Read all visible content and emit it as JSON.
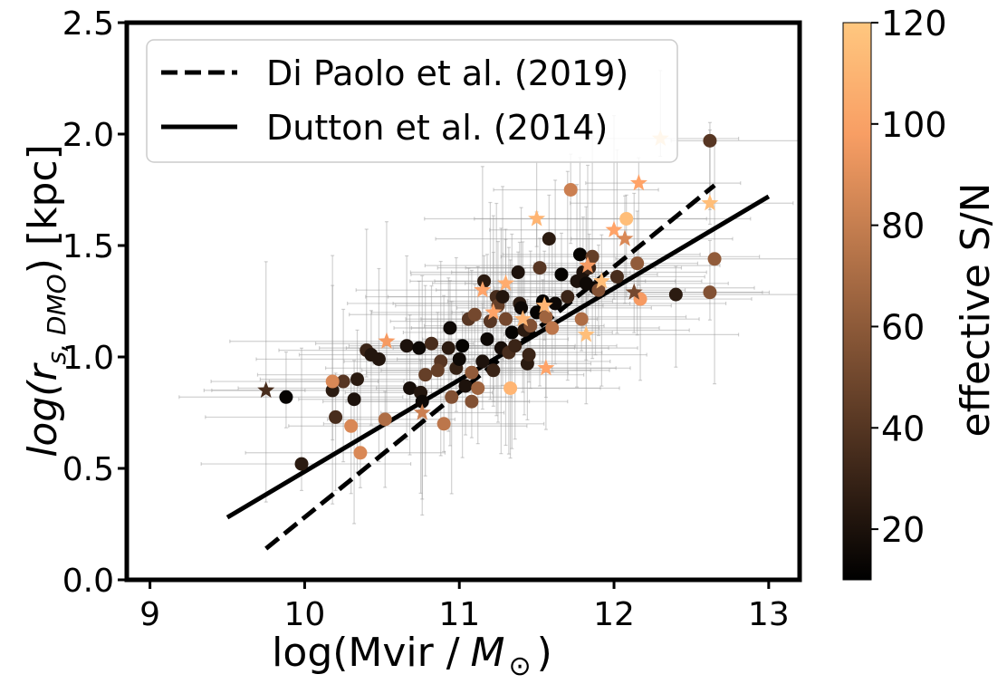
{
  "chart_data": {
    "type": "scatter",
    "xlabel_main": "log(Mvir /",
    "xlabel_math": "M",
    "xlabel_sub": "⊙",
    "xlabel_close": ")",
    "ylabel_prefix": "log(",
    "ylabel_math": "r",
    "ylabel_sub": "s, DMO",
    "ylabel_suffix": ") [kpc]",
    "xlim": [
      8.85,
      13.2
    ],
    "ylim": [
      0.0,
      2.5
    ],
    "xticks": [
      9,
      10,
      11,
      12,
      13
    ],
    "xtick_labels": [
      "9",
      "10",
      "11",
      "12",
      "13"
    ],
    "yticks": [
      0.0,
      0.5,
      1.0,
      1.5,
      2.0,
      2.5
    ],
    "ytick_labels": [
      "0.0",
      "0.5",
      "1.0",
      "1.5",
      "2.0",
      "2.5"
    ],
    "colorbar": {
      "label": "effective S/N",
      "range": [
        10,
        120
      ],
      "ticks": [
        20,
        40,
        60,
        80,
        100,
        120
      ],
      "tick_labels": [
        "20",
        "40",
        "60",
        "80",
        "100",
        "120"
      ],
      "colormap": "copper"
    },
    "legend": {
      "position": "top-left",
      "entries": [
        {
          "label": "Di Paolo et al. (2019)",
          "style": "dashed"
        },
        {
          "label": "Dutton et al. (2014)",
          "style": "solid"
        }
      ]
    },
    "lines": [
      {
        "name": "Di Paolo et al. (2019)",
        "style": "dashed",
        "x": [
          9.75,
          12.65
        ],
        "y": [
          0.14,
          1.77
        ]
      },
      {
        "name": "Dutton et al. (2014)",
        "style": "solid",
        "x": [
          9.5,
          13.0
        ],
        "y": [
          0.28,
          1.72
        ]
      }
    ],
    "series": [
      {
        "name": "circles",
        "marker": "circle",
        "points": [
          [
            9.88,
            0.82,
            12
          ],
          [
            9.98,
            0.52,
            25
          ],
          [
            10.18,
            0.85,
            25
          ],
          [
            10.2,
            0.73,
            35
          ],
          [
            10.25,
            0.89,
            40
          ],
          [
            10.18,
            0.89,
            85
          ],
          [
            10.32,
            0.81,
            20
          ],
          [
            10.34,
            0.9,
            25
          ],
          [
            10.3,
            0.69,
            85
          ],
          [
            10.36,
            0.57,
            85
          ],
          [
            10.4,
            1.03,
            30
          ],
          [
            10.43,
            1.01,
            22
          ],
          [
            10.48,
            0.99,
            22
          ],
          [
            10.52,
            0.72,
            70
          ],
          [
            10.66,
            1.05,
            20
          ],
          [
            10.68,
            0.86,
            18
          ],
          [
            10.74,
            1.04,
            15
          ],
          [
            10.75,
            0.84,
            22
          ],
          [
            10.76,
            0.8,
            15
          ],
          [
            10.78,
            0.92,
            45
          ],
          [
            10.82,
            1.06,
            35
          ],
          [
            10.88,
            0.98,
            40
          ],
          [
            10.86,
            0.94,
            45
          ],
          [
            10.9,
            0.7,
            75
          ],
          [
            10.93,
            1.04,
            25
          ],
          [
            10.94,
            1.13,
            15
          ],
          [
            10.95,
            0.82,
            55
          ],
          [
            10.98,
            0.95,
            28
          ],
          [
            11.0,
            0.99,
            15
          ],
          [
            11.02,
            1.05,
            12
          ],
          [
            11.04,
            0.87,
            20
          ],
          [
            11.06,
            1.17,
            40
          ],
          [
            11.08,
            0.8,
            55
          ],
          [
            11.1,
            1.19,
            50
          ],
          [
            11.08,
            0.93,
            60
          ],
          [
            11.12,
            0.86,
            65
          ],
          [
            11.15,
            0.98,
            20
          ],
          [
            11.16,
            1.34,
            25
          ],
          [
            11.18,
            1.08,
            15
          ],
          [
            11.2,
            1.16,
            40
          ],
          [
            11.22,
            0.94,
            30
          ],
          [
            11.24,
            1.27,
            35
          ],
          [
            11.25,
            1.23,
            45
          ],
          [
            11.27,
            1.04,
            18
          ],
          [
            11.28,
            1.27,
            22
          ],
          [
            11.3,
            1.17,
            50
          ],
          [
            11.32,
            1.02,
            35
          ],
          [
            11.34,
            1.11,
            12
          ],
          [
            11.33,
            0.86,
            110
          ],
          [
            11.36,
            1.05,
            30
          ],
          [
            11.38,
            1.38,
            20
          ],
          [
            11.39,
            1.24,
            25
          ],
          [
            11.4,
            1.22,
            15
          ],
          [
            11.42,
            1.12,
            25
          ],
          [
            11.44,
            0.97,
            25
          ],
          [
            11.45,
            1.01,
            30
          ],
          [
            11.46,
            1.14,
            55
          ],
          [
            11.5,
            1.2,
            12
          ],
          [
            11.52,
            1.4,
            40
          ],
          [
            11.54,
            1.25,
            12
          ],
          [
            11.56,
            1.18,
            65
          ],
          [
            11.58,
            1.53,
            25
          ],
          [
            11.6,
            1.13,
            75
          ],
          [
            11.62,
            1.24,
            15
          ],
          [
            11.66,
            1.37,
            12
          ],
          [
            11.7,
            1.27,
            30
          ],
          [
            11.72,
            1.75,
            80
          ],
          [
            11.76,
            1.34,
            20
          ],
          [
            11.78,
            1.46,
            12
          ],
          [
            11.8,
            1.38,
            20
          ],
          [
            11.79,
            1.17,
            70
          ],
          [
            11.82,
            1.33,
            15
          ],
          [
            11.84,
            1.4,
            30
          ],
          [
            11.86,
            1.45,
            45
          ],
          [
            11.88,
            1.31,
            15
          ],
          [
            11.9,
            1.3,
            55
          ],
          [
            12.02,
            1.36,
            35
          ],
          [
            12.08,
            1.62,
            115
          ],
          [
            12.15,
            1.42,
            60
          ],
          [
            12.17,
            1.26,
            95
          ],
          [
            12.4,
            1.28,
            25
          ],
          [
            12.62,
            1.97,
            40
          ],
          [
            12.62,
            1.29,
            55
          ],
          [
            12.65,
            1.44,
            60
          ]
        ]
      },
      {
        "name": "stars",
        "marker": "star",
        "points": [
          [
            9.75,
            0.85,
            35
          ],
          [
            10.53,
            1.07,
            95
          ],
          [
            10.76,
            0.75,
            80
          ],
          [
            11.15,
            1.3,
            100
          ],
          [
            11.22,
            1.2,
            100
          ],
          [
            11.3,
            1.33,
            105
          ],
          [
            11.41,
            1.17,
            110
          ],
          [
            11.5,
            1.62,
            110
          ],
          [
            11.55,
            1.23,
            110
          ],
          [
            11.56,
            0.95,
            100
          ],
          [
            11.82,
            1.1,
            115
          ],
          [
            11.83,
            1.41,
            95
          ],
          [
            11.92,
            1.34,
            115
          ],
          [
            12.0,
            1.57,
            100
          ],
          [
            12.07,
            1.53,
            85
          ],
          [
            12.13,
            1.29,
            50
          ],
          [
            12.16,
            1.78,
            100
          ],
          [
            12.3,
            1.98,
            125
          ],
          [
            12.62,
            1.69,
            115
          ]
        ]
      }
    ]
  }
}
